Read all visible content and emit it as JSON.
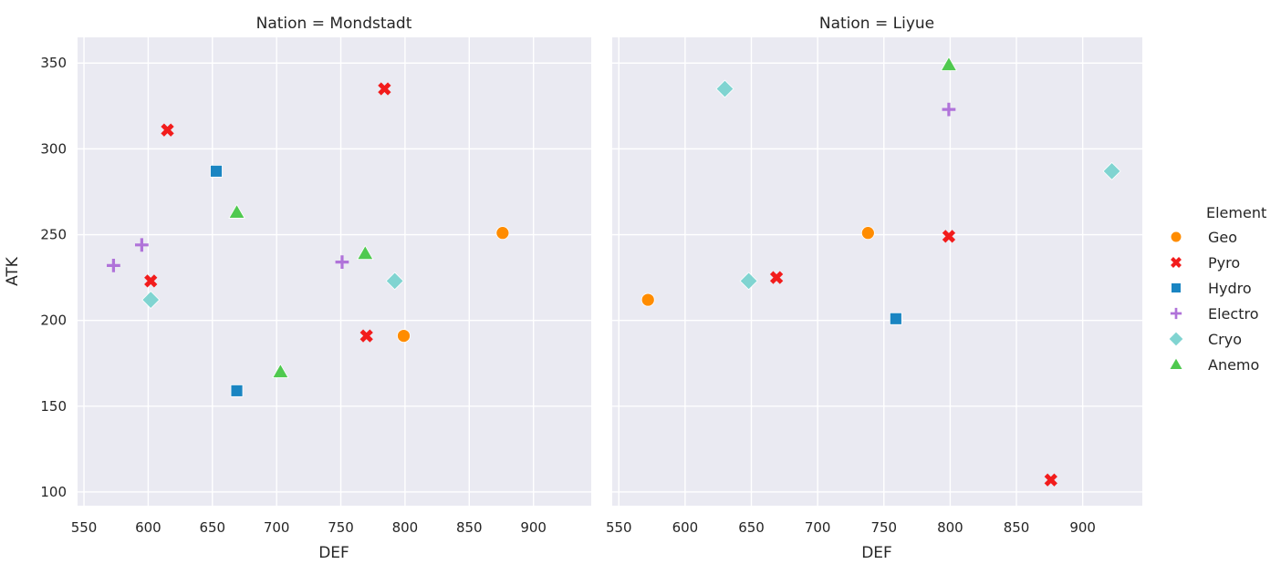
{
  "chart_data": {
    "type": "scatter",
    "xlabel": "DEF",
    "ylabel": "ATK",
    "xlim": [
      545,
      945
    ],
    "ylim": [
      92,
      365
    ],
    "xticks": [
      550,
      600,
      650,
      700,
      750,
      800,
      850,
      900
    ],
    "yticks": [
      100,
      150,
      200,
      250,
      300,
      350
    ],
    "grid": true,
    "legend": {
      "title": "Element",
      "placement": "right",
      "entries": [
        {
          "name": "Geo",
          "color": "#ff8c00",
          "marker": "circle"
        },
        {
          "name": "Pyro",
          "color": "#f21c1c",
          "marker": "x"
        },
        {
          "name": "Hydro",
          "color": "#1a85c2",
          "marker": "square"
        },
        {
          "name": "Electro",
          "color": "#b073d9",
          "marker": "plus"
        },
        {
          "name": "Cryo",
          "color": "#80d4d1",
          "marker": "diamond"
        },
        {
          "name": "Anemo",
          "color": "#4fc94f",
          "marker": "triangle"
        }
      ]
    },
    "panels": [
      {
        "title": "Nation = Mondstadt",
        "points": [
          {
            "element": "Geo",
            "x": 876,
            "y": 251
          },
          {
            "element": "Geo",
            "x": 799,
            "y": 191
          },
          {
            "element": "Pyro",
            "x": 615,
            "y": 311
          },
          {
            "element": "Pyro",
            "x": 784,
            "y": 335
          },
          {
            "element": "Pyro",
            "x": 602,
            "y": 223
          },
          {
            "element": "Pyro",
            "x": 770,
            "y": 191
          },
          {
            "element": "Hydro",
            "x": 653,
            "y": 287
          },
          {
            "element": "Hydro",
            "x": 669,
            "y": 159
          },
          {
            "element": "Electro",
            "x": 595,
            "y": 244
          },
          {
            "element": "Electro",
            "x": 573,
            "y": 232
          },
          {
            "element": "Electro",
            "x": 751,
            "y": 234
          },
          {
            "element": "Cryo",
            "x": 602,
            "y": 212
          },
          {
            "element": "Cryo",
            "x": 792,
            "y": 223
          },
          {
            "element": "Anemo",
            "x": 669,
            "y": 263
          },
          {
            "element": "Anemo",
            "x": 769,
            "y": 239
          },
          {
            "element": "Anemo",
            "x": 703,
            "y": 170
          }
        ]
      },
      {
        "title": "Nation = Liyue",
        "points": [
          {
            "element": "Geo",
            "x": 572,
            "y": 212
          },
          {
            "element": "Geo",
            "x": 738,
            "y": 251
          },
          {
            "element": "Pyro",
            "x": 669,
            "y": 225
          },
          {
            "element": "Pyro",
            "x": 799,
            "y": 249
          },
          {
            "element": "Pyro",
            "x": 876,
            "y": 107
          },
          {
            "element": "Hydro",
            "x": 759,
            "y": 201
          },
          {
            "element": "Electro",
            "x": 799,
            "y": 323
          },
          {
            "element": "Cryo",
            "x": 630,
            "y": 335
          },
          {
            "element": "Cryo",
            "x": 648,
            "y": 223
          },
          {
            "element": "Cryo",
            "x": 922,
            "y": 287
          },
          {
            "element": "Anemo",
            "x": 799,
            "y": 349
          }
        ]
      }
    ]
  }
}
